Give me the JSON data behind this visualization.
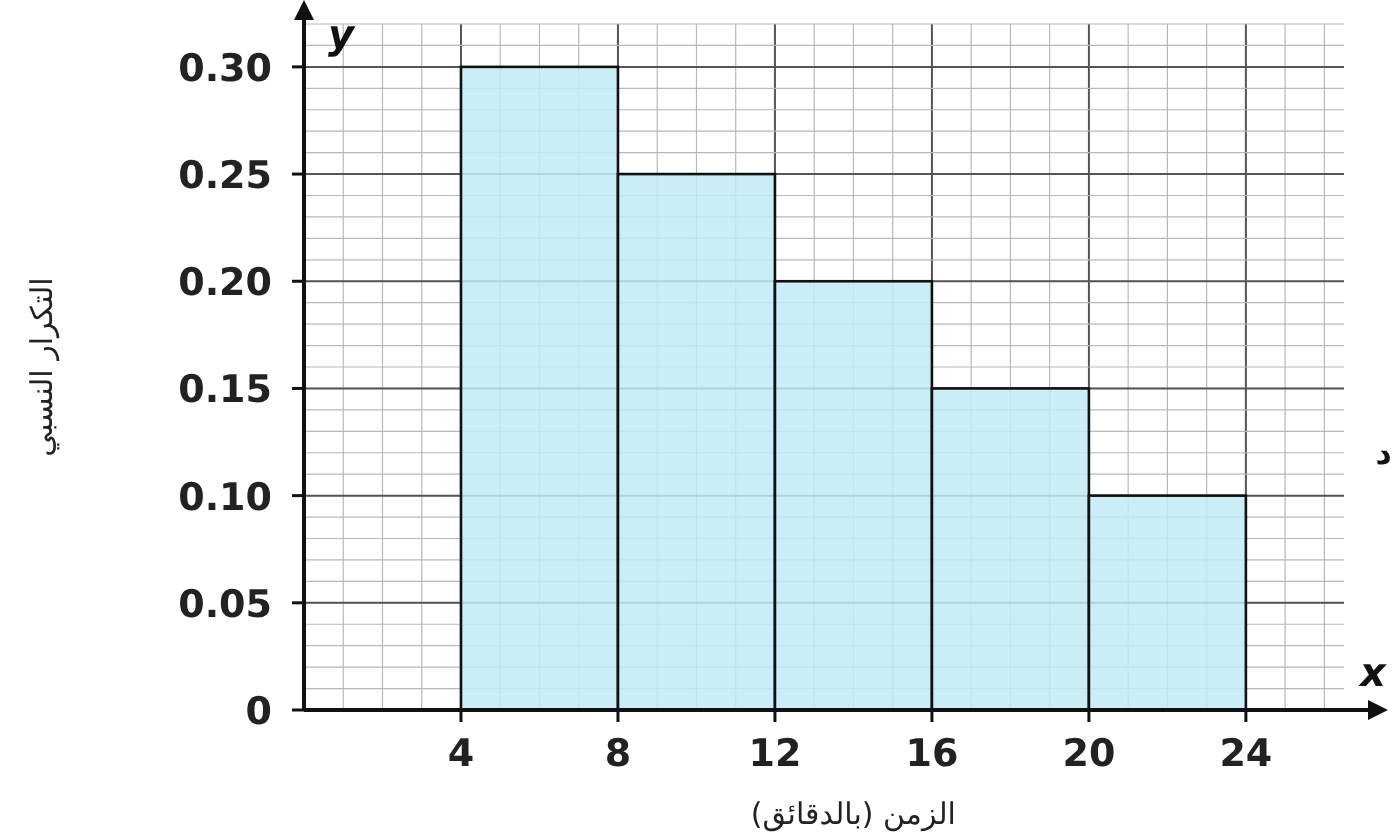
{
  "chart_data": {
    "type": "histogram",
    "xlabel": "الزمن (بالدقائق)",
    "ylabel": "التكرار النسبي",
    "bins": [
      4,
      8,
      12,
      16,
      20,
      24
    ],
    "values": [
      0.3,
      0.25,
      0.2,
      0.15,
      0.1
    ],
    "color": "#c2ebf5",
    "xlim": [
      0,
      26.5
    ],
    "ylim": [
      0,
      0.32
    ],
    "xticks": [
      4,
      8,
      12,
      16,
      20,
      24
    ],
    "yticks": [
      0,
      0.05,
      {
        "value": 0.1,
        "label": "0.10"
      },
      0.15,
      {
        "value": 0.2,
        "label": "0.20"
      },
      0.25,
      {
        "value": 0.3,
        "label": "0.30"
      }
    ],
    "grid": true,
    "annotations": [
      "y",
      "x",
      "د"
    ]
  }
}
